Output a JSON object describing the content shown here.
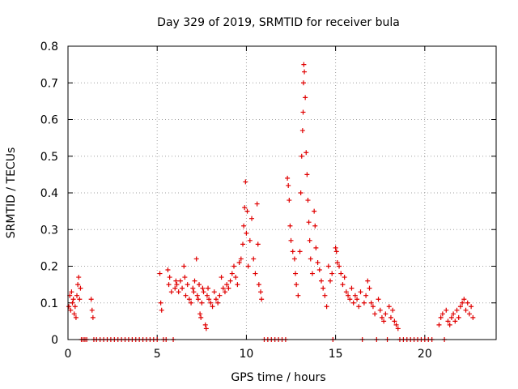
{
  "chart_data": {
    "type": "scatter",
    "title": "Day 329 of 2019, SRMTID for receiver bula",
    "xlabel": "GPS time / hours",
    "ylabel": "SRMTID / TECUs",
    "xlim": [
      0,
      24
    ],
    "ylim": [
      0,
      0.8
    ],
    "xticks": [
      0,
      5,
      10,
      15,
      20
    ],
    "xtick_labels": [
      "0",
      "5",
      "10",
      "15",
      "20"
    ],
    "yticks": [
      0,
      0.1,
      0.2,
      0.3,
      0.4,
      0.5,
      0.6,
      0.7,
      0.8
    ],
    "ytick_labels": [
      "0",
      "0.1",
      "0.2",
      "0.3",
      "0.4",
      "0.5",
      "0.6",
      "0.7",
      "0.8"
    ],
    "grid": true,
    "marker": "+",
    "series": [
      {
        "name": "SRMTID",
        "color": "#e00000",
        "points": [
          [
            0.05,
            0.09
          ],
          [
            0.1,
            0.12
          ],
          [
            0.15,
            0.08
          ],
          [
            0.2,
            0.13
          ],
          [
            0.25,
            0.1
          ],
          [
            0.3,
            0.11
          ],
          [
            0.35,
            0.07
          ],
          [
            0.4,
            0.09
          ],
          [
            0.45,
            0.06
          ],
          [
            0.5,
            0.12
          ],
          [
            0.55,
            0.15
          ],
          [
            0.6,
            0.17
          ],
          [
            0.65,
            0.11
          ],
          [
            0.7,
            0.14
          ],
          [
            0.75,
            0.0
          ],
          [
            0.85,
            0.0
          ],
          [
            0.95,
            0.0
          ],
          [
            1.05,
            0.0
          ],
          [
            1.3,
            0.11
          ],
          [
            1.35,
            0.08
          ],
          [
            1.4,
            0.06
          ],
          [
            1.45,
            0.0
          ],
          [
            1.6,
            0.0
          ],
          [
            1.8,
            0.0
          ],
          [
            2.0,
            0.0
          ],
          [
            2.2,
            0.0
          ],
          [
            2.4,
            0.0
          ],
          [
            2.6,
            0.0
          ],
          [
            2.8,
            0.0
          ],
          [
            3.0,
            0.0
          ],
          [
            3.2,
            0.0
          ],
          [
            3.4,
            0.0
          ],
          [
            3.6,
            0.0
          ],
          [
            3.8,
            0.0
          ],
          [
            4.0,
            0.0
          ],
          [
            4.2,
            0.0
          ],
          [
            4.4,
            0.0
          ],
          [
            4.6,
            0.0
          ],
          [
            4.8,
            0.0
          ],
          [
            5.0,
            0.0
          ],
          [
            5.15,
            0.18
          ],
          [
            5.2,
            0.1
          ],
          [
            5.25,
            0.08
          ],
          [
            5.35,
            0.0
          ],
          [
            5.5,
            0.0
          ],
          [
            5.6,
            0.19
          ],
          [
            5.65,
            0.15
          ],
          [
            5.7,
            0.17
          ],
          [
            5.8,
            0.13
          ],
          [
            5.9,
            0.0
          ],
          [
            6.0,
            0.14
          ],
          [
            6.05,
            0.16
          ],
          [
            6.1,
            0.15
          ],
          [
            6.2,
            0.13
          ],
          [
            6.3,
            0.16
          ],
          [
            6.4,
            0.14
          ],
          [
            6.5,
            0.2
          ],
          [
            6.55,
            0.17
          ],
          [
            6.6,
            0.12
          ],
          [
            6.7,
            0.15
          ],
          [
            6.8,
            0.11
          ],
          [
            6.9,
            0.1
          ],
          [
            7.0,
            0.14
          ],
          [
            7.05,
            0.13
          ],
          [
            7.1,
            0.16
          ],
          [
            7.2,
            0.22
          ],
          [
            7.25,
            0.12
          ],
          [
            7.3,
            0.11
          ],
          [
            7.35,
            0.15
          ],
          [
            7.4,
            0.07
          ],
          [
            7.45,
            0.06
          ],
          [
            7.5,
            0.1
          ],
          [
            7.55,
            0.14
          ],
          [
            7.6,
            0.13
          ],
          [
            7.7,
            0.04
          ],
          [
            7.75,
            0.03
          ],
          [
            7.8,
            0.12
          ],
          [
            7.85,
            0.14
          ],
          [
            7.9,
            0.11
          ],
          [
            8.0,
            0.1
          ],
          [
            8.1,
            0.09
          ],
          [
            8.2,
            0.13
          ],
          [
            8.3,
            0.11
          ],
          [
            8.4,
            0.1
          ],
          [
            8.5,
            0.12
          ],
          [
            8.6,
            0.17
          ],
          [
            8.7,
            0.14
          ],
          [
            8.8,
            0.13
          ],
          [
            8.9,
            0.15
          ],
          [
            9.0,
            0.14
          ],
          [
            9.1,
            0.16
          ],
          [
            9.2,
            0.18
          ],
          [
            9.3,
            0.2
          ],
          [
            9.4,
            0.17
          ],
          [
            9.5,
            0.15
          ],
          [
            9.6,
            0.21
          ],
          [
            9.7,
            0.22
          ],
          [
            9.8,
            0.26
          ],
          [
            9.85,
            0.31
          ],
          [
            9.9,
            0.36
          ],
          [
            9.95,
            0.43
          ],
          [
            10.0,
            0.29
          ],
          [
            10.05,
            0.35
          ],
          [
            10.1,
            0.2
          ],
          [
            10.2,
            0.27
          ],
          [
            10.3,
            0.33
          ],
          [
            10.4,
            0.22
          ],
          [
            10.5,
            0.18
          ],
          [
            10.6,
            0.37
          ],
          [
            10.65,
            0.26
          ],
          [
            10.7,
            0.15
          ],
          [
            10.8,
            0.13
          ],
          [
            10.85,
            0.11
          ],
          [
            11.0,
            0.0
          ],
          [
            11.2,
            0.0
          ],
          [
            11.4,
            0.0
          ],
          [
            11.6,
            0.0
          ],
          [
            11.8,
            0.0
          ],
          [
            12.0,
            0.0
          ],
          [
            12.2,
            0.0
          ],
          [
            12.3,
            0.44
          ],
          [
            12.35,
            0.42
          ],
          [
            12.4,
            0.38
          ],
          [
            12.45,
            0.31
          ],
          [
            12.5,
            0.27
          ],
          [
            12.6,
            0.24
          ],
          [
            12.7,
            0.22
          ],
          [
            12.75,
            0.18
          ],
          [
            12.8,
            0.15
          ],
          [
            12.9,
            0.12
          ],
          [
            13.0,
            0.24
          ],
          [
            13.05,
            0.4
          ],
          [
            13.1,
            0.5
          ],
          [
            13.15,
            0.57
          ],
          [
            13.18,
            0.62
          ],
          [
            13.2,
            0.7
          ],
          [
            13.22,
            0.75
          ],
          [
            13.25,
            0.73
          ],
          [
            13.3,
            0.66
          ],
          [
            13.35,
            0.51
          ],
          [
            13.4,
            0.45
          ],
          [
            13.45,
            0.38
          ],
          [
            13.5,
            0.32
          ],
          [
            13.55,
            0.27
          ],
          [
            13.6,
            0.22
          ],
          [
            13.7,
            0.18
          ],
          [
            13.8,
            0.35
          ],
          [
            13.85,
            0.31
          ],
          [
            13.9,
            0.25
          ],
          [
            14.0,
            0.21
          ],
          [
            14.1,
            0.19
          ],
          [
            14.2,
            0.16
          ],
          [
            14.3,
            0.14
          ],
          [
            14.4,
            0.12
          ],
          [
            14.5,
            0.09
          ],
          [
            14.6,
            0.2
          ],
          [
            14.7,
            0.16
          ],
          [
            14.8,
            0.18
          ],
          [
            14.85,
            0.0
          ],
          [
            15.0,
            0.25
          ],
          [
            15.05,
            0.24
          ],
          [
            15.1,
            0.21
          ],
          [
            15.2,
            0.2
          ],
          [
            15.3,
            0.18
          ],
          [
            15.4,
            0.15
          ],
          [
            15.5,
            0.17
          ],
          [
            15.6,
            0.13
          ],
          [
            15.7,
            0.12
          ],
          [
            15.8,
            0.11
          ],
          [
            15.9,
            0.14
          ],
          [
            16.0,
            0.1
          ],
          [
            16.1,
            0.12
          ],
          [
            16.2,
            0.11
          ],
          [
            16.3,
            0.09
          ],
          [
            16.4,
            0.13
          ],
          [
            16.5,
            0.0
          ],
          [
            16.6,
            0.1
          ],
          [
            16.7,
            0.12
          ],
          [
            16.8,
            0.16
          ],
          [
            16.9,
            0.14
          ],
          [
            17.0,
            0.1
          ],
          [
            17.1,
            0.09
          ],
          [
            17.2,
            0.07
          ],
          [
            17.3,
            0.0
          ],
          [
            17.4,
            0.11
          ],
          [
            17.5,
            0.08
          ],
          [
            17.6,
            0.06
          ],
          [
            17.7,
            0.05
          ],
          [
            17.8,
            0.07
          ],
          [
            17.9,
            0.0
          ],
          [
            18.0,
            0.09
          ],
          [
            18.1,
            0.06
          ],
          [
            18.2,
            0.08
          ],
          [
            18.3,
            0.05
          ],
          [
            18.4,
            0.04
          ],
          [
            18.5,
            0.03
          ],
          [
            18.6,
            0.0
          ],
          [
            18.8,
            0.0
          ],
          [
            19.0,
            0.0
          ],
          [
            19.2,
            0.0
          ],
          [
            19.4,
            0.0
          ],
          [
            19.6,
            0.0
          ],
          [
            19.8,
            0.0
          ],
          [
            20.0,
            0.0
          ],
          [
            20.2,
            0.0
          ],
          [
            20.4,
            0.0
          ],
          [
            20.8,
            0.04
          ],
          [
            20.9,
            0.06
          ],
          [
            21.0,
            0.07
          ],
          [
            21.1,
            0.0
          ],
          [
            21.2,
            0.08
          ],
          [
            21.3,
            0.05
          ],
          [
            21.4,
            0.04
          ],
          [
            21.5,
            0.06
          ],
          [
            21.6,
            0.07
          ],
          [
            21.7,
            0.05
          ],
          [
            21.8,
            0.08
          ],
          [
            21.9,
            0.06
          ],
          [
            22.0,
            0.09
          ],
          [
            22.1,
            0.1
          ],
          [
            22.2,
            0.11
          ],
          [
            22.3,
            0.08
          ],
          [
            22.4,
            0.1
          ],
          [
            22.5,
            0.07
          ],
          [
            22.6,
            0.09
          ],
          [
            22.7,
            0.06
          ]
        ]
      }
    ]
  }
}
